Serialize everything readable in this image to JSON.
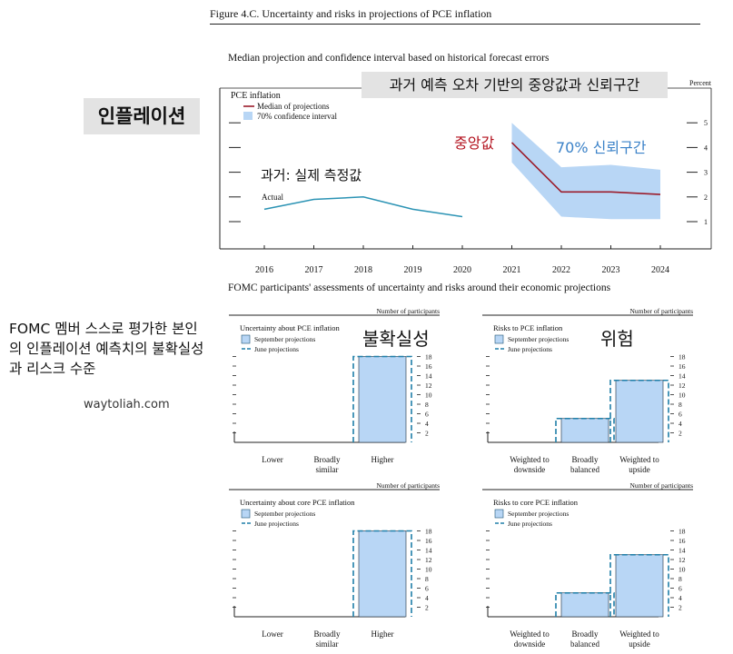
{
  "figure": {
    "title": "Figure 4.C. Uncertainty and risks in projections of PCE inflation",
    "subtitle_top": "Median projection and confidence interval based on historical forecast errors",
    "subtitle_bottom": "FOMC participants' assessments of uncertainty and risks around their economic projections"
  },
  "annotations": {
    "inflation_label": "인플레이션",
    "title_ko": "과거 예측 오차 기반의 중앙값과 신뢰구간",
    "actual_ko": "과거: 실제 측정값",
    "median_ko": "중앙값",
    "ci_ko": "70% 신뢰구간",
    "fomc_ko": "FOMC 멤버 스스로 평가한 본인의 인플레이션 예측치의 불확실성과 리스크 수준",
    "uncertainty_ko": "불확실성",
    "risk_ko": "위험",
    "site": "waytoliah.com"
  },
  "colors": {
    "actual": "#2b93b4",
    "median": "#9b1c2b",
    "band": "#b8d6f5",
    "bar_fill": "#b8d6f5",
    "june_dash": "#1f7fa8",
    "median_ko": "#b3121e",
    "ci_ko": "#3b82c8"
  },
  "chart_data": [
    {
      "type": "line",
      "id": "pce-projection",
      "title": "PCE inflation",
      "unit_label": "Percent",
      "x": [
        2016,
        2017,
        2018,
        2019,
        2020,
        2021,
        2022,
        2023,
        2024
      ],
      "ylim": [
        0.5,
        5.5
      ],
      "yticks": [
        1,
        2,
        3,
        4,
        5
      ],
      "legend": [
        "Median of projections",
        "70% confidence interval"
      ],
      "actual_label": "Actual",
      "series": [
        {
          "name": "Actual",
          "x": [
            2016,
            2017,
            2018,
            2019,
            2020
          ],
          "values": [
            1.5,
            1.9,
            2.0,
            1.5,
            1.2
          ]
        },
        {
          "name": "Median of projections",
          "x": [
            2021,
            2022,
            2023,
            2024
          ],
          "values": [
            4.2,
            2.2,
            2.2,
            2.1
          ]
        },
        {
          "name": "70% confidence interval",
          "x": [
            2021,
            2022,
            2023,
            2024
          ],
          "lower": [
            3.4,
            1.2,
            1.1,
            1.1
          ],
          "upper": [
            5.0,
            3.2,
            3.3,
            3.1
          ]
        }
      ]
    },
    {
      "type": "bar",
      "id": "unc-pce",
      "title": "Uncertainty about PCE inflation",
      "ylabel": "Number of participants",
      "categories": [
        "Lower",
        "Broadly similar",
        "Higher"
      ],
      "yticks": [
        2,
        4,
        6,
        8,
        10,
        12,
        14,
        16,
        18
      ],
      "ylim": [
        0,
        19
      ],
      "legend": [
        "September projections",
        "June projections"
      ],
      "series": [
        {
          "name": "September projections",
          "values": [
            0,
            0,
            18
          ]
        },
        {
          "name": "June projections",
          "values": [
            0,
            0,
            18
          ]
        }
      ]
    },
    {
      "type": "bar",
      "id": "risk-pce",
      "title": "Risks to PCE inflation",
      "ylabel": "Number of participants",
      "categories": [
        "Weighted to downside",
        "Broadly balanced",
        "Weighted to upside"
      ],
      "yticks": [
        2,
        4,
        6,
        8,
        10,
        12,
        14,
        16,
        18
      ],
      "ylim": [
        0,
        19
      ],
      "legend": [
        "September projections",
        "June projections"
      ],
      "series": [
        {
          "name": "September projections",
          "values": [
            0,
            5,
            13
          ]
        },
        {
          "name": "June projections",
          "values": [
            0,
            5,
            13
          ]
        }
      ]
    },
    {
      "type": "bar",
      "id": "unc-core",
      "title": "Uncertainty about core PCE inflation",
      "ylabel": "Number of participants",
      "categories": [
        "Lower",
        "Broadly similar",
        "Higher"
      ],
      "yticks": [
        2,
        4,
        6,
        8,
        10,
        12,
        14,
        16,
        18
      ],
      "ylim": [
        0,
        19
      ],
      "legend": [
        "September projections",
        "June projections"
      ],
      "series": [
        {
          "name": "September projections",
          "values": [
            0,
            0,
            18
          ]
        },
        {
          "name": "June projections",
          "values": [
            0,
            0,
            18
          ]
        }
      ]
    },
    {
      "type": "bar",
      "id": "risk-core",
      "title": "Risks to core PCE inflation",
      "ylabel": "Number of participants",
      "categories": [
        "Weighted to downside",
        "Broadly balanced",
        "Weighted to upside"
      ],
      "yticks": [
        2,
        4,
        6,
        8,
        10,
        12,
        14,
        16,
        18
      ],
      "ylim": [
        0,
        19
      ],
      "legend": [
        "September projections",
        "June projections"
      ],
      "series": [
        {
          "name": "September projections",
          "values": [
            0,
            5,
            13
          ]
        },
        {
          "name": "June projections",
          "values": [
            0,
            5,
            13
          ]
        }
      ]
    }
  ]
}
